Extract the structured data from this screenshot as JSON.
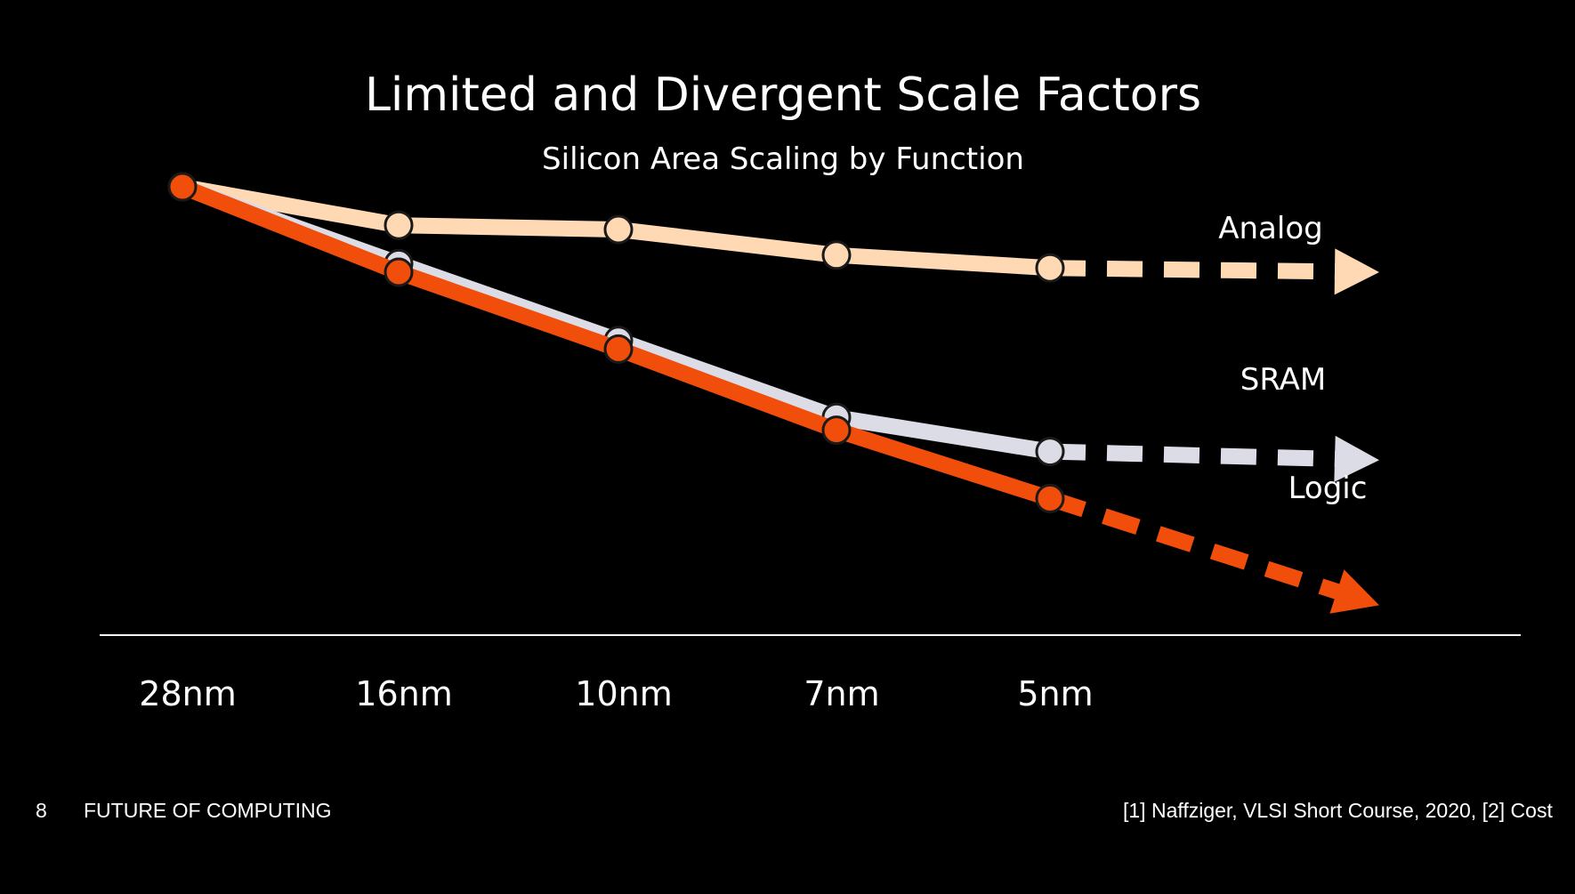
{
  "footer": {
    "page_number": "8",
    "label": "FUTURE OF COMPUTING",
    "citation": "[1] Naffziger, VLSI Short Course, 2020, [2] Cost"
  },
  "chart_data": {
    "type": "line",
    "title": "Limited and Divergent Scale Factors",
    "subtitle": "Silicon Area Scaling by Function",
    "categories": [
      "28nm",
      "16nm",
      "10nm",
      "7nm",
      "5nm"
    ],
    "y_axis_shown": false,
    "grid": false,
    "series": [
      {
        "name": "Analog",
        "color": "#ffd9b3",
        "values": [
          1.0,
          0.91,
          0.9,
          0.84,
          0.81
        ],
        "projected_end": 0.8
      },
      {
        "name": "SRAM",
        "color": "#dcdce6",
        "values": [
          1.0,
          0.82,
          0.64,
          0.46,
          0.38
        ],
        "projected_end": 0.36
      },
      {
        "name": "Logic",
        "color": "#f04e0a",
        "values": [
          1.0,
          0.8,
          0.62,
          0.43,
          0.27
        ],
        "projected_end": 0.02
      }
    ]
  }
}
